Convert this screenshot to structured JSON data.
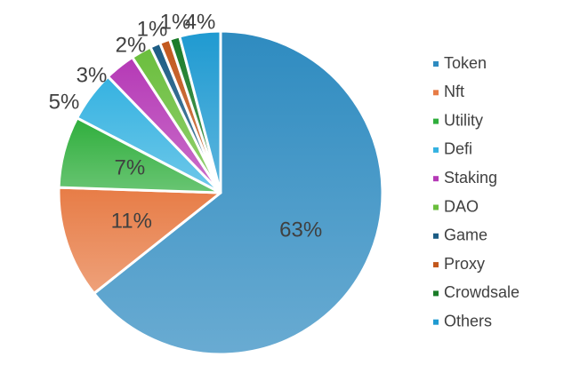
{
  "chart_data": {
    "type": "pie",
    "title": "",
    "legend_position": "right",
    "slices": [
      {
        "label": "Token",
        "value": 63,
        "display": "63%",
        "color": "#2e8bc0"
      },
      {
        "label": "Nft",
        "value": 11,
        "display": "11%",
        "color": "#e77c46"
      },
      {
        "label": "Utility",
        "value": 7,
        "display": "7%",
        "color": "#2fae3c"
      },
      {
        "label": "Defi",
        "value": 5,
        "display": "5%",
        "color": "#35b2e1"
      },
      {
        "label": "Staking",
        "value": 3,
        "display": "3%",
        "color": "#b539b6"
      },
      {
        "label": "DAO",
        "value": 2,
        "display": "2%",
        "color": "#6abe3c"
      },
      {
        "label": "Game",
        "value": 1,
        "display": "1%",
        "color": "#1c5c84"
      },
      {
        "label": "Proxy",
        "value": 1,
        "display": "1%",
        "color": "#c2571c"
      },
      {
        "label": "Crowdsale",
        "value": 1,
        "display": "",
        "color": "#1a7b28"
      },
      {
        "label": "Others",
        "value": 4,
        "display": "4%",
        "color": "#1f9ad1"
      }
    ]
  }
}
